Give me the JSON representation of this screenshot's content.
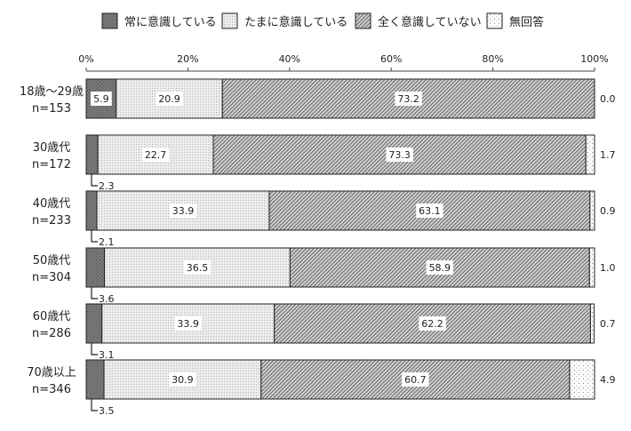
{
  "chart_data": {
    "type": "bar",
    "orientation": "horizontal",
    "stacked": true,
    "xlim": [
      0,
      100
    ],
    "x_ticks": [
      "0%",
      "20%",
      "40%",
      "60%",
      "80%",
      "100%"
    ],
    "legend_position": "top",
    "categories": [
      {
        "name": "18歳〜29歳",
        "n": "n=153"
      },
      {
        "name": "30歳代",
        "n": "n=172"
      },
      {
        "name": "40歳代",
        "n": "n=233"
      },
      {
        "name": "50歳代",
        "n": "n=304"
      },
      {
        "name": "60歳代",
        "n": "n=286"
      },
      {
        "name": "70歳以上",
        "n": "n=346"
      }
    ],
    "series": [
      {
        "name": "常に意識している",
        "pattern": "dark",
        "values": [
          5.9,
          2.3,
          2.1,
          3.6,
          3.1,
          3.5
        ]
      },
      {
        "name": "たまに意識している",
        "pattern": "light-dots",
        "values": [
          20.9,
          22.7,
          33.9,
          36.5,
          33.9,
          30.9
        ]
      },
      {
        "name": "全く意識していない",
        "pattern": "hatched",
        "values": [
          73.2,
          73.3,
          63.1,
          58.9,
          62.2,
          60.7
        ]
      },
      {
        "name": "無回答",
        "pattern": "sparse-dots",
        "values": [
          0.0,
          1.7,
          0.9,
          1.0,
          0.7,
          4.9
        ]
      }
    ]
  }
}
